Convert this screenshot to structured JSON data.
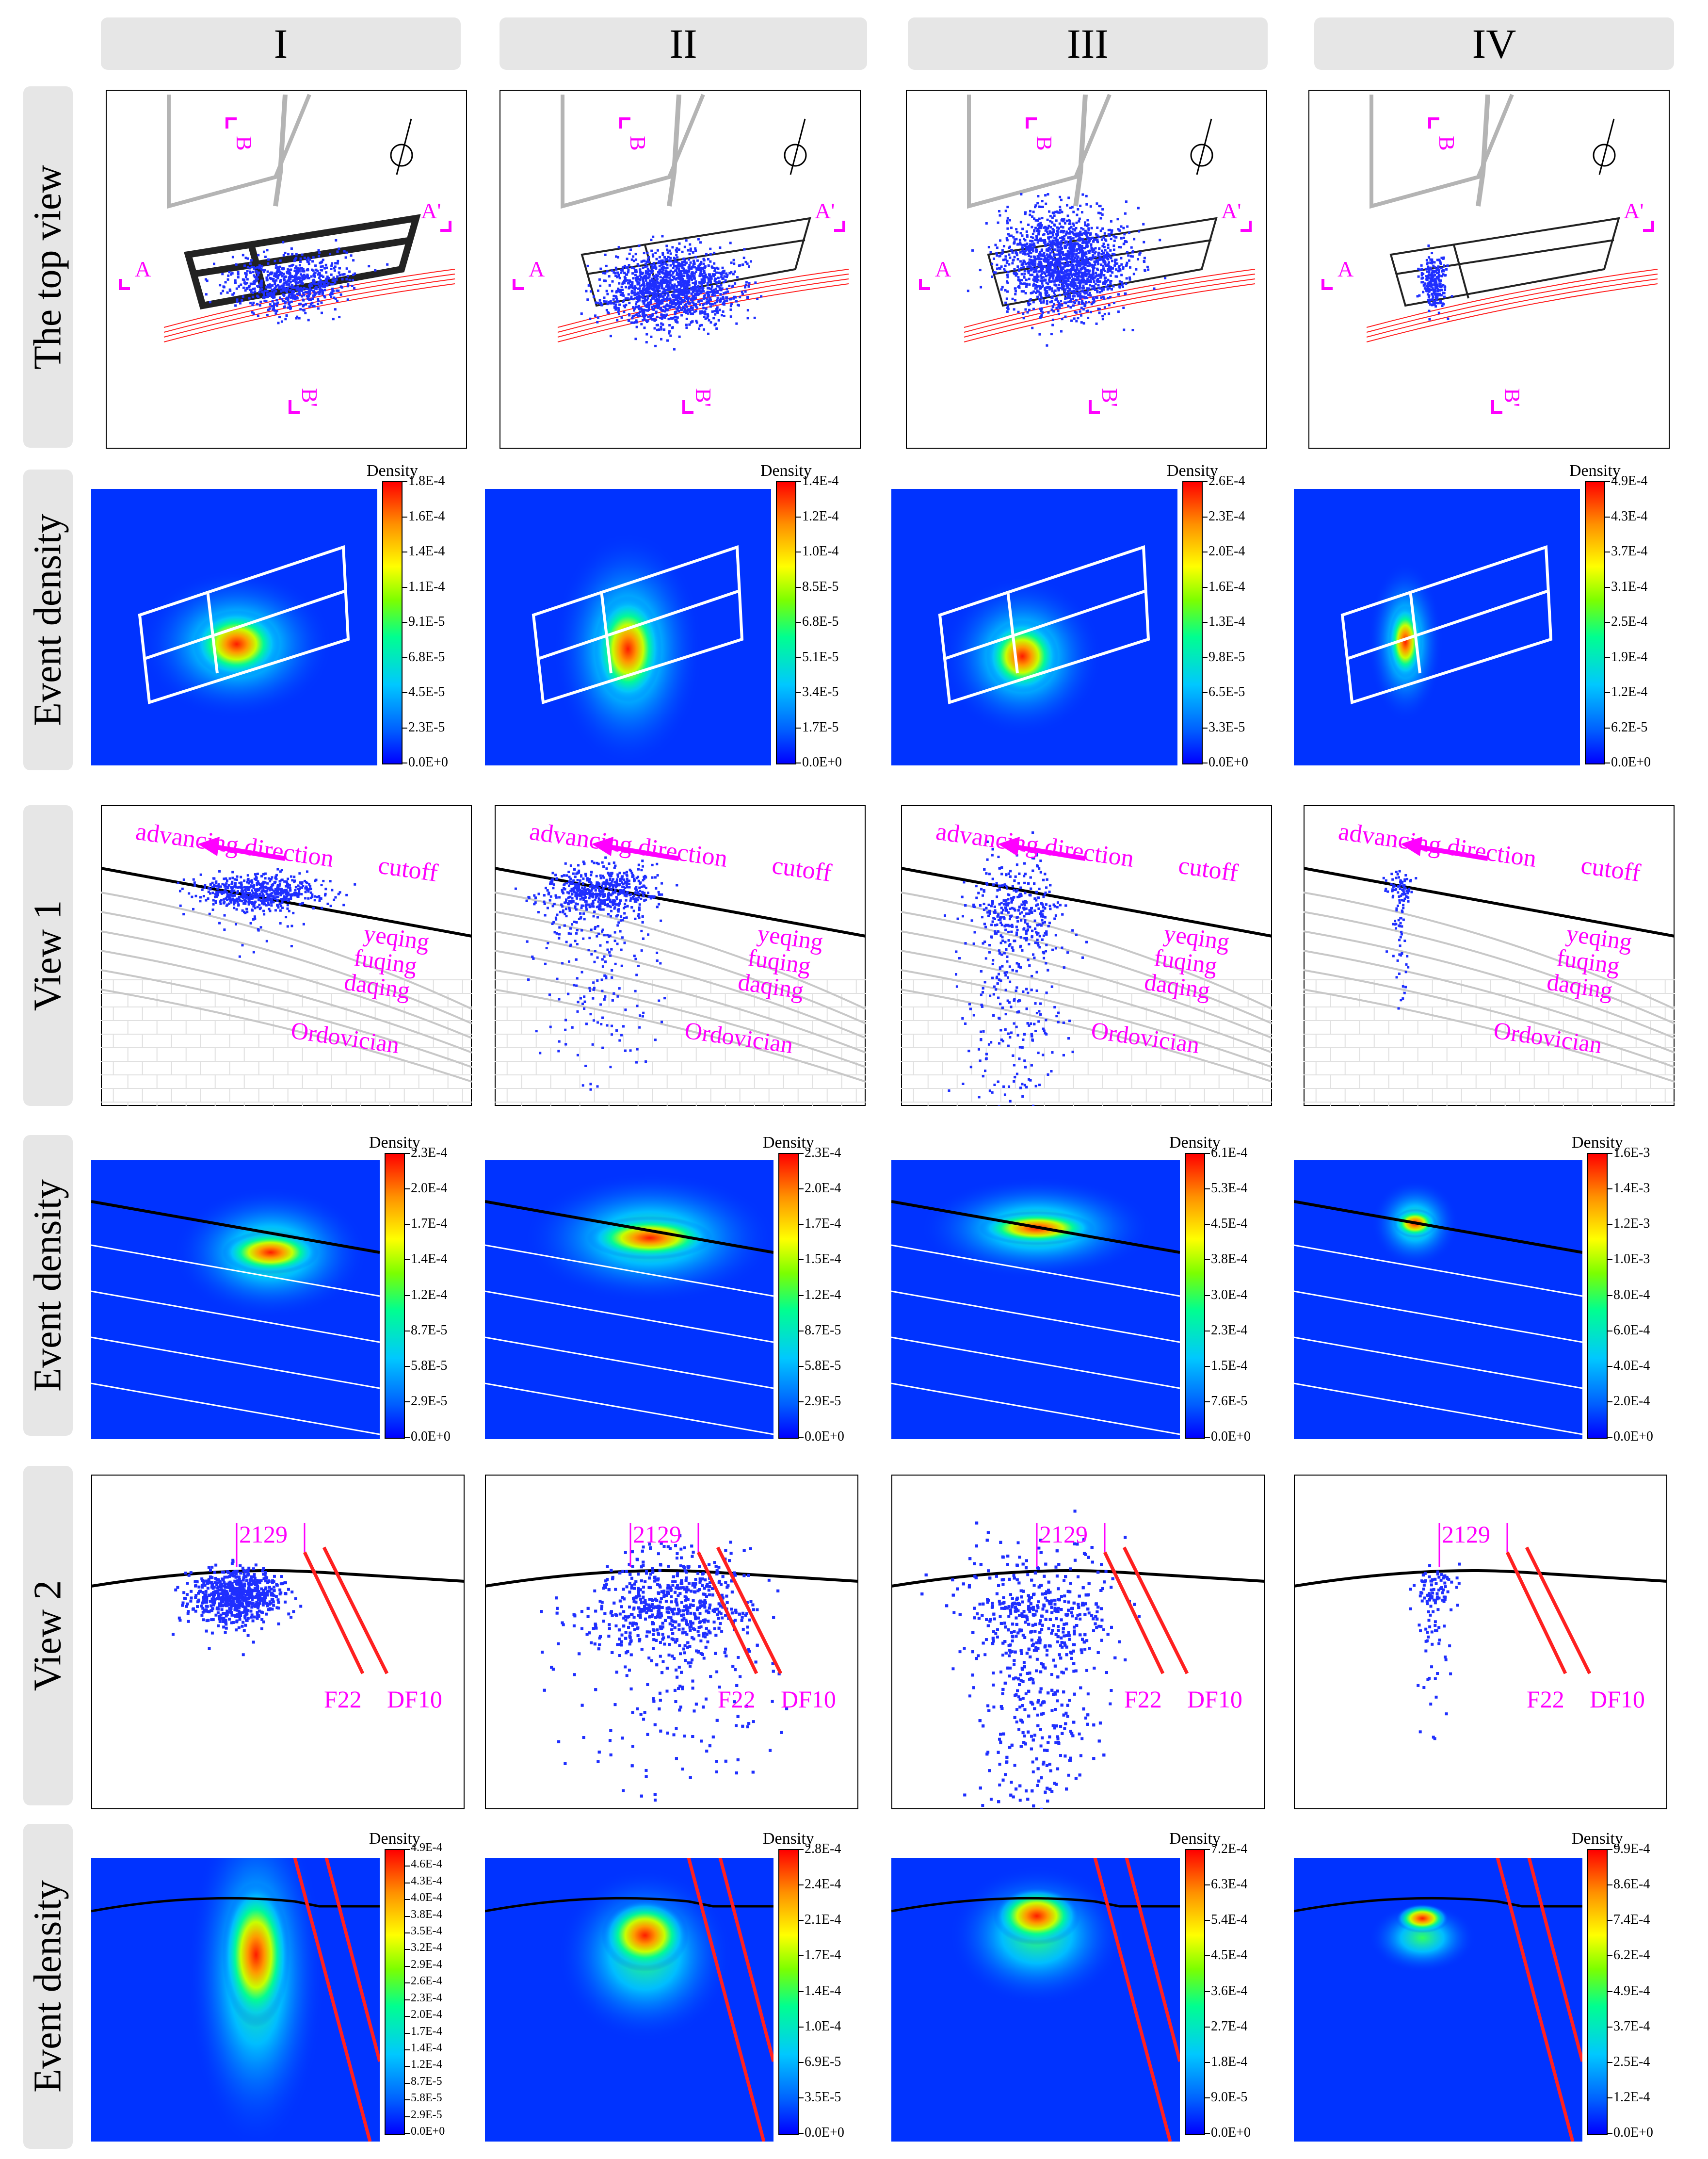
{
  "columns": [
    "I",
    "II",
    "III",
    "IV"
  ],
  "rows": {
    "top_view": "The top view",
    "event_density": "Event density",
    "view1": "View 1",
    "view2": "View  2"
  },
  "section_labels": {
    "A": "A",
    "A_prime": "A'",
    "B": "B",
    "B_prime": "B'"
  },
  "view1_labels": {
    "advancing": "advancing direction",
    "cutoff": "cutoff",
    "yeqing": "yeqing",
    "fuqing": "fuqing",
    "daqing": "daqing",
    "ordovician": "Ordovician"
  },
  "view2_labels": {
    "roadway": "2129",
    "fault1": "F22",
    "fault2": "DF10"
  },
  "colorbar_title": "Density",
  "colorbars": {
    "r2": [
      [
        "1.8E-4",
        "1.6E-4",
        "1.4E-4",
        "1.1E-4",
        "9.1E-5",
        "6.8E-5",
        "4.5E-5",
        "2.3E-5",
        "0.0E+0"
      ],
      [
        "1.4E-4",
        "1.2E-4",
        "1.0E-4",
        "8.5E-5",
        "6.8E-5",
        "5.1E-5",
        "3.4E-5",
        "1.7E-5",
        "0.0E+0"
      ],
      [
        "2.6E-4",
        "2.3E-4",
        "2.0E-4",
        "1.6E-4",
        "1.3E-4",
        "9.8E-5",
        "6.5E-5",
        "3.3E-5",
        "0.0E+0"
      ],
      [
        "4.9E-4",
        "4.3E-4",
        "3.7E-4",
        "3.1E-4",
        "2.5E-4",
        "1.9E-4",
        "1.2E-4",
        "6.2E-5",
        "0.0E+0"
      ]
    ],
    "r4": [
      [
        "2.3E-4",
        "2.0E-4",
        "1.7E-4",
        "1.4E-4",
        "1.2E-4",
        "8.7E-5",
        "5.8E-5",
        "2.9E-5",
        "0.0E+0"
      ],
      [
        "2.3E-4",
        "2.0E-4",
        "1.7E-4",
        "1.5E-4",
        "1.2E-4",
        "8.7E-5",
        "5.8E-5",
        "2.9E-5",
        "0.0E+0"
      ],
      [
        "6.1E-4",
        "5.3E-4",
        "4.5E-4",
        "3.8E-4",
        "3.0E-4",
        "2.3E-4",
        "1.5E-4",
        "7.6E-5",
        "0.0E+0"
      ],
      [
        "1.6E-3",
        "1.4E-3",
        "1.2E-3",
        "1.0E-3",
        "8.0E-4",
        "6.0E-4",
        "4.0E-4",
        "2.0E-4",
        "0.0E+0"
      ]
    ],
    "r6": [
      [
        "4.9E-4",
        "4.6E-4",
        "4.3E-4",
        "4.0E-4",
        "3.8E-4",
        "3.5E-4",
        "3.2E-4",
        "2.9E-4",
        "2.6E-4",
        "2.3E-4",
        "2.0E-4",
        "1.7E-4",
        "1.4E-4",
        "1.2E-4",
        "8.7E-5",
        "5.8E-5",
        "2.9E-5",
        "0.0E+0"
      ],
      [
        "2.8E-4",
        "2.4E-4",
        "2.1E-4",
        "1.7E-4",
        "1.4E-4",
        "1.0E-4",
        "6.9E-5",
        "3.5E-5",
        "0.0E+0"
      ],
      [
        "7.2E-4",
        "6.3E-4",
        "5.4E-4",
        "4.5E-4",
        "3.6E-4",
        "2.7E-4",
        "1.8E-4",
        "9.0E-5",
        "0.0E+0"
      ],
      [
        "9.9E-4",
        "8.6E-4",
        "7.4E-4",
        "6.2E-4",
        "4.9E-4",
        "3.7E-4",
        "2.5E-4",
        "1.2E-4",
        "0.0E+0"
      ]
    ]
  },
  "colors": {
    "event_points": "#1f2fff",
    "label_magenta": "#ff00ff",
    "faults_red": "#ff2020",
    "density_background": "#0033ff"
  }
}
